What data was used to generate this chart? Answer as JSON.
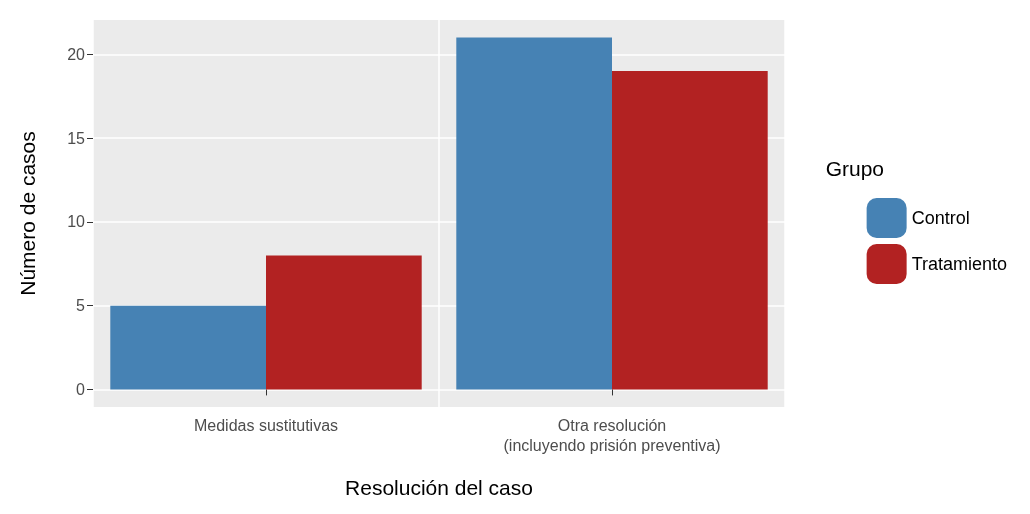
{
  "chart_data": {
    "type": "bar",
    "xlabel": "Resolución del caso",
    "ylabel": "Número de casos",
    "legend_title": "Grupo",
    "categories": [
      "Medidas sustitutivas",
      "Otra resolución\n(incluyendo prisión preventiva)"
    ],
    "series": [
      {
        "name": "Control",
        "color": "#4682b4",
        "values": [
          5,
          21
        ]
      },
      {
        "name": "Tratamiento",
        "color": "#b22222",
        "values": [
          8,
          19
        ]
      }
    ],
    "ylim": [
      -1.05,
      22.05
    ],
    "yticks": [
      0,
      5,
      10,
      15,
      20
    ],
    "grid": true,
    "legend": "right"
  }
}
